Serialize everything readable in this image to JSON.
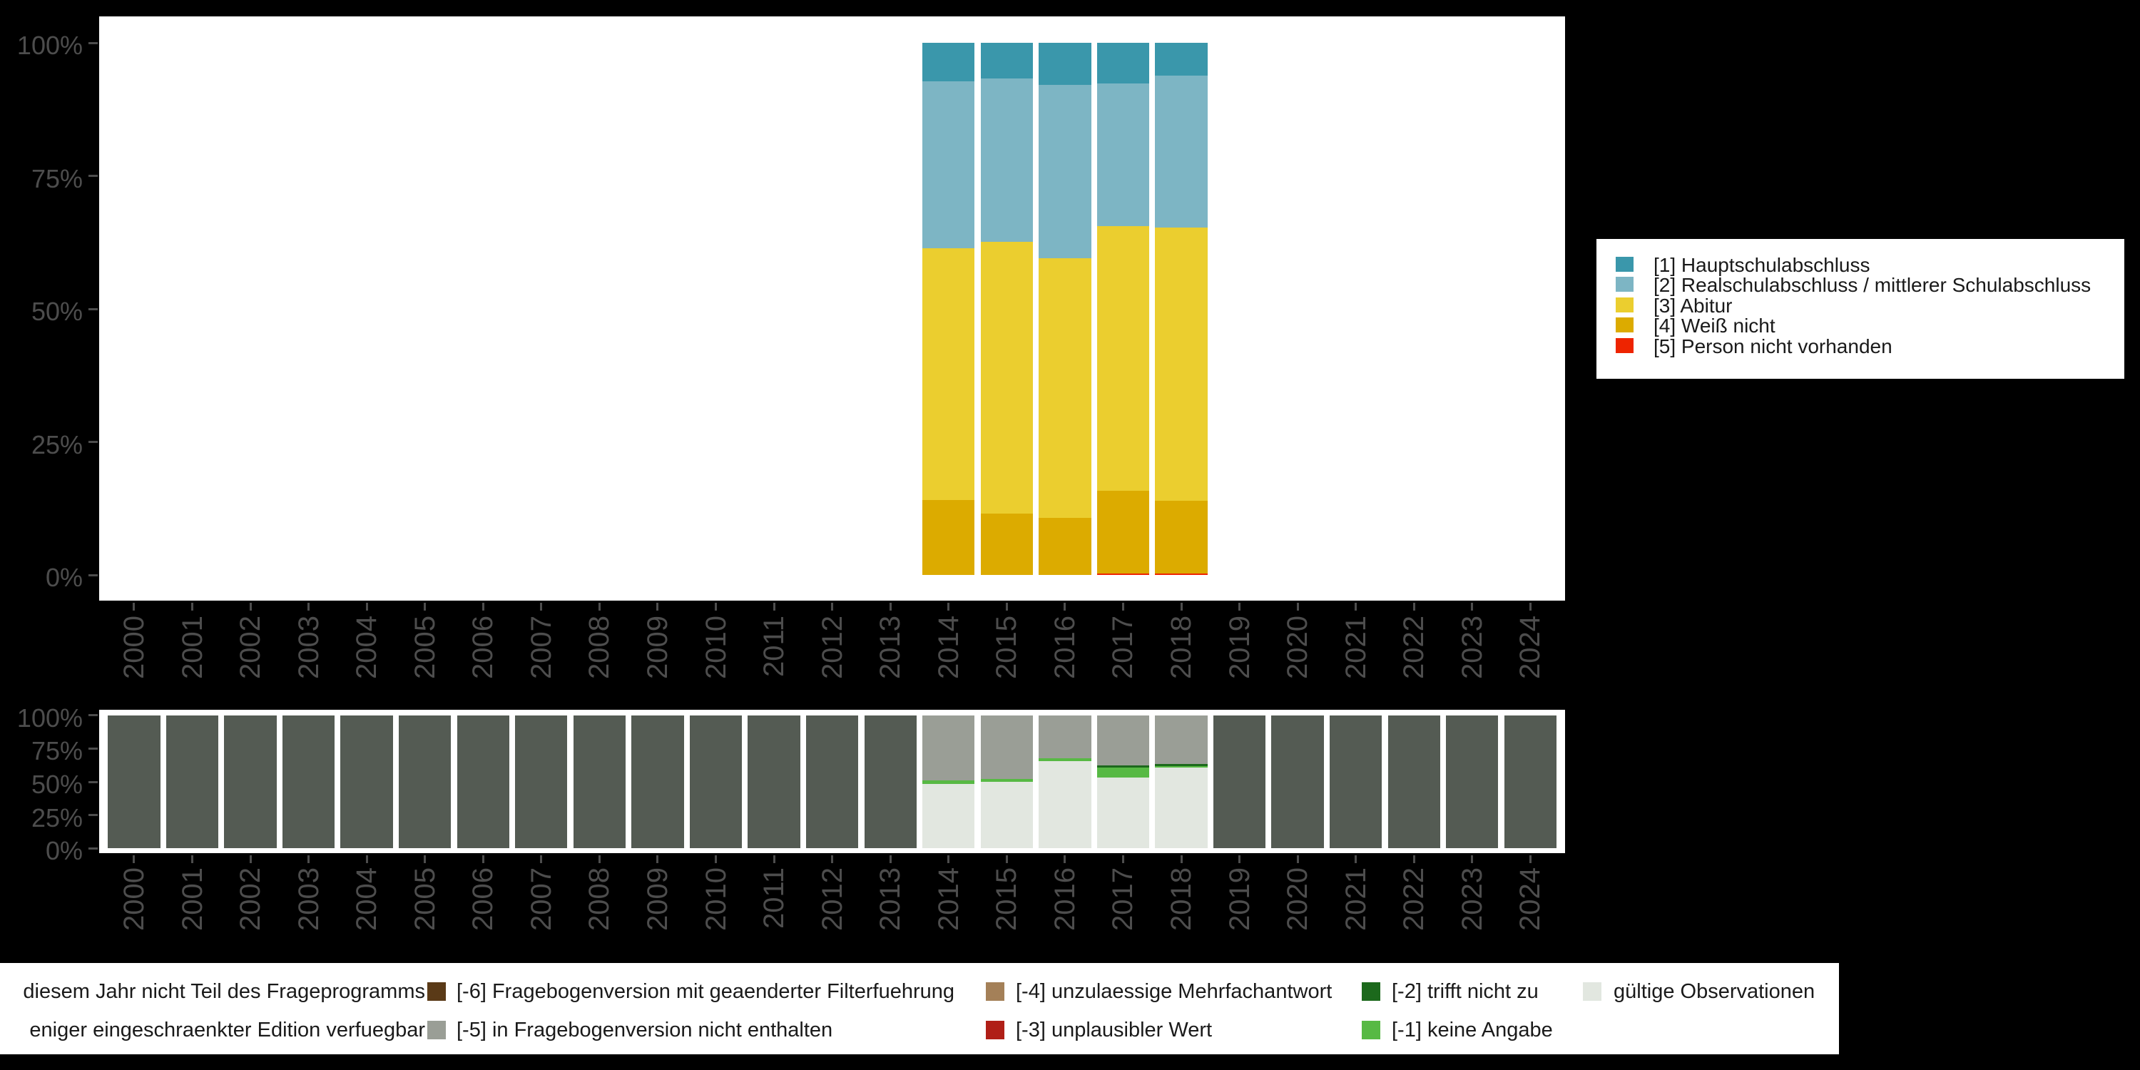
{
  "page": {
    "background": "#000000",
    "panel_background": "#FFFFFF",
    "axis_text_color": "#4D4D4D",
    "legend_text_color": "#1A1A1A"
  },
  "chart_data": [
    {
      "id": "values-chart",
      "type": "bar",
      "subtype": "stacked-100-percent",
      "grid": false,
      "ylim": [
        0,
        100
      ],
      "legend_position": "right",
      "categories": [
        "2000",
        "2001",
        "2002",
        "2003",
        "2004",
        "2005",
        "2006",
        "2007",
        "2008",
        "2009",
        "2010",
        "2011",
        "2012",
        "2013",
        "2014",
        "2015",
        "2016",
        "2017",
        "2018",
        "2019",
        "2020",
        "2021",
        "2022",
        "2023",
        "2024"
      ],
      "yticks": [
        "100%",
        "75%",
        "50%",
        "25%",
        "0%"
      ],
      "data_years": [
        "2014",
        "2015",
        "2016",
        "2017",
        "2018"
      ],
      "series": [
        {
          "name": "[1] Hauptschulabschluss",
          "color": "#3A97AB",
          "values": [
            7.2,
            6.7,
            7.9,
            7.6,
            6.1
          ]
        },
        {
          "name": "[2] Realschulabschluss / mittlerer Schulabschluss",
          "color": "#7DB5C4",
          "values": [
            31.4,
            30.7,
            32.6,
            26.9,
            28.6
          ]
        },
        {
          "name": "[3] Abitur",
          "color": "#EBCE2F",
          "values": [
            47.3,
            51.0,
            48.8,
            49.7,
            51.3
          ]
        },
        {
          "name": "[4] Weiß nicht",
          "color": "#DCAB00",
          "values": [
            14.1,
            11.6,
            10.7,
            15.5,
            13.7
          ]
        },
        {
          "name": "[5] Person nicht vorhanden",
          "color": "#EE2400",
          "values": [
            0,
            0,
            0,
            0.3,
            0.3
          ]
        }
      ]
    },
    {
      "id": "missings-chart",
      "type": "bar",
      "subtype": "stacked-100-percent",
      "grid": false,
      "ylim": [
        0,
        100
      ],
      "categories": [
        "2000",
        "2001",
        "2002",
        "2003",
        "2004",
        "2005",
        "2006",
        "2007",
        "2008",
        "2009",
        "2010",
        "2011",
        "2012",
        "2013",
        "2014",
        "2015",
        "2016",
        "2017",
        "2018",
        "2019",
        "2020",
        "2021",
        "2022",
        "2023",
        "2024"
      ],
      "yticks": [
        "100%",
        "75%",
        "50%",
        "25%",
        "0%"
      ],
      "data_years": [
        "2014",
        "2015",
        "2016",
        "2017",
        "2018"
      ],
      "series": [
        {
          "name": "[-5] in Fragebogenversion nicht enthalten",
          "color": "#9A9E96",
          "values": [
            49.1,
            47.9,
            32.1,
            37.9,
            36.6
          ]
        },
        {
          "name": "[-2] trifft nicht zu",
          "color": "#1C691C",
          "values": [
            0,
            0,
            0,
            1.4,
            1.4
          ]
        },
        {
          "name": "[-1] keine Angabe",
          "color": "#57B944",
          "values": [
            2.5,
            2.1,
            2.2,
            7.5,
            1.3
          ]
        },
        {
          "name": "gültige Observationen",
          "color": "#E2E7E0",
          "values": [
            48.4,
            50.0,
            65.7,
            53.2,
            60.7
          ]
        }
      ],
      "no_data": {
        "color": "#545B53",
        "value": 100
      }
    }
  ],
  "bottom_legend": {
    "columns": [
      {
        "entries": [
          {
            "swatch": null,
            "label": "diesem Jahr nicht Teil des Frageprogramms"
          },
          {
            "swatch": null,
            "label": "eniger eingeschraenkter Edition verfuegbar"
          }
        ]
      },
      {
        "entries": [
          {
            "swatch": "#5A3A17",
            "label": "[-6] Fragebogenversion mit geaenderter Filterfuehrung"
          },
          {
            "swatch": "#9A9E96",
            "label": "[-5] in Fragebogenversion nicht enthalten"
          }
        ]
      },
      {
        "entries": [
          {
            "swatch": "#A48058",
            "label": "[-4] unzulaessige Mehrfachantwort"
          },
          {
            "swatch": "#B01F17",
            "label": "[-3] unplausibler Wert"
          }
        ]
      },
      {
        "entries": [
          {
            "swatch": "#1C691C",
            "label": "[-2] trifft nicht zu"
          },
          {
            "swatch": "#57B944",
            "label": "[-1] keine Angabe"
          }
        ]
      },
      {
        "entries": [
          {
            "swatch": "#E2E7E0",
            "label": "gültige Observationen"
          }
        ]
      }
    ]
  }
}
